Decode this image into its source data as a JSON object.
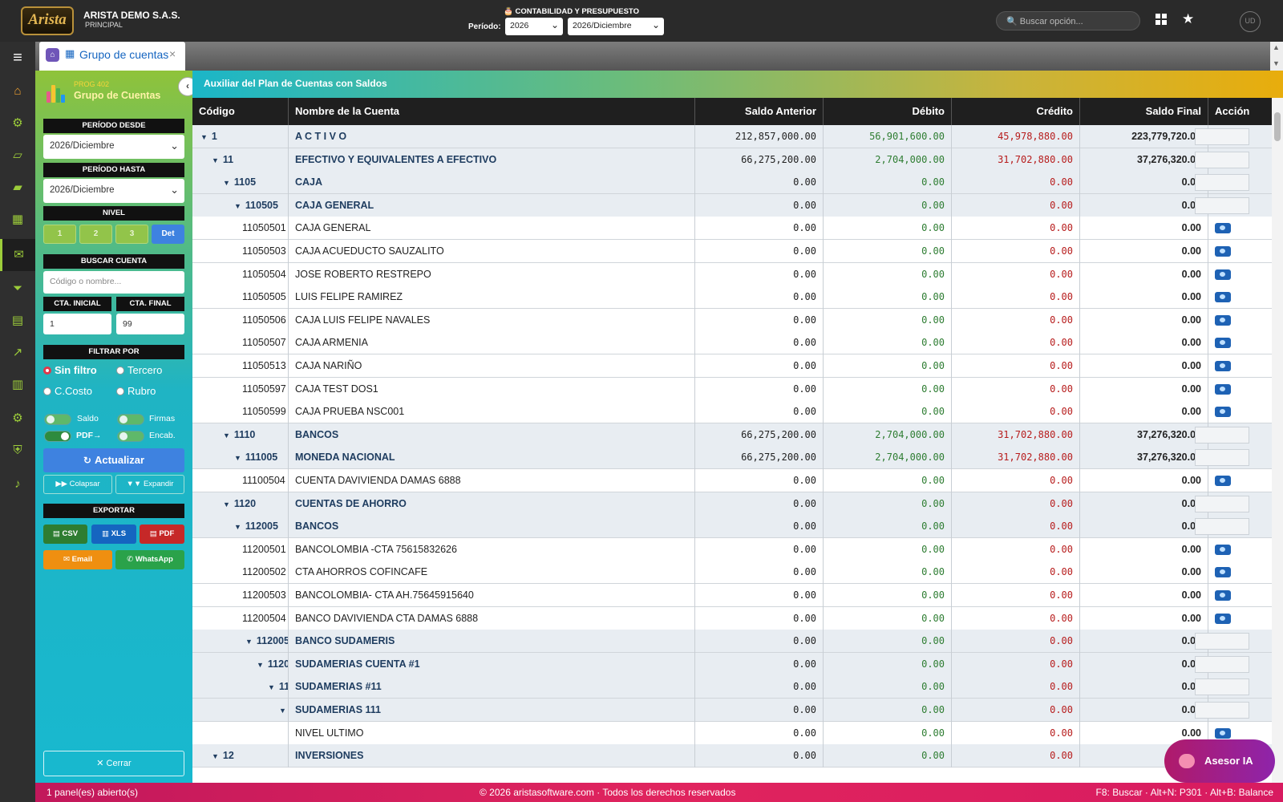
{
  "topbar": {
    "logo_text": "Arista",
    "company_name": "ARISTA DEMO S.A.S.",
    "company_sub": "PRINCIPAL",
    "module_title": "🎂 CONTABILIDAD Y PRESUPUESTO",
    "period_label": "Período:",
    "year_value": "2026",
    "month_value": "2026/Diciembre",
    "search_placeholder": "🔍 Buscar opción...",
    "avatar_initials": "UD"
  },
  "tab": {
    "label": "Grupo de cuentas"
  },
  "panel": {
    "prog_code": "PROG 402",
    "prog_name": "Grupo de Cuentas",
    "periodo_desde_label": "PERÍODO DESDE",
    "periodo_desde_value": "2026/Diciembre",
    "periodo_hasta_label": "PERÍODO HASTA",
    "periodo_hasta_value": "2026/Diciembre",
    "nivel_label": "NIVEL",
    "nivel_options": [
      "1",
      "2",
      "3",
      "Det"
    ],
    "buscar_label": "BUSCAR CUENTA",
    "buscar_placeholder": "Código o nombre...",
    "cta_inicial_label": "CTA. INICIAL",
    "cta_inicial_value": "1",
    "cta_final_label": "CTA. FINAL",
    "cta_final_value": "99",
    "filtrar_label": "FILTRAR POR",
    "filter_sin": "Sin filtro",
    "filter_tercero": "Tercero",
    "filter_ccosto": "C.Costo",
    "filter_rubro": "Rubro",
    "toggle_saldo": "Saldo",
    "toggle_firmas": "Firmas",
    "toggle_pdf": "PDF→",
    "toggle_encab": "Encab.",
    "actualizar": "Actualizar",
    "colapsar": "▶▶ Colapsar",
    "expandir": "▼▼ Expandir",
    "exportar_label": "EXPORTAR",
    "csv": "CSV",
    "xls": "XLS",
    "pdf": "PDF",
    "email": "Email",
    "whatsapp": "WhatsApp",
    "cerrar": "✕ Cerrar"
  },
  "report": {
    "title": "Auxiliar del Plan de Cuentas con Saldos",
    "columns": [
      "Código",
      "Nombre de la Cuenta",
      "Saldo Anterior",
      "Débito",
      "Crédito",
      "Saldo Final",
      "Acción"
    ],
    "rows": [
      {
        "lvl": 0,
        "type": "g",
        "code": "1",
        "name": "A C T I V O",
        "prev": "212,857,000.00",
        "deb": "56,901,600.00",
        "cre": "45,978,880.00",
        "fin": "223,779,720.00"
      },
      {
        "lvl": 1,
        "type": "g",
        "code": "11",
        "name": "EFECTIVO Y EQUIVALENTES A EFECTIVO",
        "prev": "66,275,200.00",
        "deb": "2,704,000.00",
        "cre": "31,702,880.00",
        "fin": "37,276,320.00"
      },
      {
        "lvl": 2,
        "type": "g",
        "code": "1105",
        "name": "CAJA",
        "prev": "0.00",
        "deb": "0.00",
        "cre": "0.00",
        "fin": "0.00"
      },
      {
        "lvl": 3,
        "type": "g",
        "code": "110505",
        "name": "CAJA GENERAL",
        "prev": "0.00",
        "deb": "0.00",
        "cre": "0.00",
        "fin": "0.00"
      },
      {
        "lvl": 4,
        "type": "l",
        "code": "11050501",
        "name": "CAJA GENERAL",
        "prev": "0.00",
        "deb": "0.00",
        "cre": "0.00",
        "fin": "0.00"
      },
      {
        "lvl": 4,
        "type": "l",
        "code": "11050503",
        "name": "CAJA ACUEDUCTO SAUZALITO",
        "prev": "0.00",
        "deb": "0.00",
        "cre": "0.00",
        "fin": "0.00"
      },
      {
        "lvl": 4,
        "type": "l",
        "code": "11050504",
        "name": "JOSE ROBERTO RESTREPO",
        "prev": "0.00",
        "deb": "0.00",
        "cre": "0.00",
        "fin": "0.00"
      },
      {
        "lvl": 4,
        "type": "l",
        "code": "11050505",
        "name": "LUIS FELIPE RAMIREZ",
        "prev": "0.00",
        "deb": "0.00",
        "cre": "0.00",
        "fin": "0.00"
      },
      {
        "lvl": 4,
        "type": "l",
        "code": "11050506",
        "name": "CAJA LUIS FELIPE NAVALES",
        "prev": "0.00",
        "deb": "0.00",
        "cre": "0.00",
        "fin": "0.00"
      },
      {
        "lvl": 4,
        "type": "l",
        "code": "11050507",
        "name": "CAJA ARMENIA",
        "prev": "0.00",
        "deb": "0.00",
        "cre": "0.00",
        "fin": "0.00"
      },
      {
        "lvl": 4,
        "type": "l",
        "code": "11050513",
        "name": "CAJA NARIÑO",
        "prev": "0.00",
        "deb": "0.00",
        "cre": "0.00",
        "fin": "0.00"
      },
      {
        "lvl": 4,
        "type": "l",
        "code": "11050597",
        "name": "CAJA TEST DOS1",
        "prev": "0.00",
        "deb": "0.00",
        "cre": "0.00",
        "fin": "0.00"
      },
      {
        "lvl": 4,
        "type": "l",
        "code": "11050599",
        "name": "CAJA PRUEBA NSC001",
        "prev": "0.00",
        "deb": "0.00",
        "cre": "0.00",
        "fin": "0.00"
      },
      {
        "lvl": 2,
        "type": "g",
        "code": "1110",
        "name": "BANCOS",
        "prev": "66,275,200.00",
        "deb": "2,704,000.00",
        "cre": "31,702,880.00",
        "fin": "37,276,320.00"
      },
      {
        "lvl": 3,
        "type": "g",
        "code": "111005",
        "name": "MONEDA NACIONAL",
        "prev": "66,275,200.00",
        "deb": "2,704,000.00",
        "cre": "31,702,880.00",
        "fin": "37,276,320.00"
      },
      {
        "lvl": 4,
        "type": "l",
        "code": "11100504",
        "name": "CUENTA DAVIVIENDA DAMAS 6888",
        "prev": "0.00",
        "deb": "0.00",
        "cre": "0.00",
        "fin": "0.00"
      },
      {
        "lvl": 2,
        "type": "g",
        "code": "1120",
        "name": "CUENTAS DE AHORRO",
        "prev": "0.00",
        "deb": "0.00",
        "cre": "0.00",
        "fin": "0.00"
      },
      {
        "lvl": 3,
        "type": "g",
        "code": "112005",
        "name": "BANCOS",
        "prev": "0.00",
        "deb": "0.00",
        "cre": "0.00",
        "fin": "0.00"
      },
      {
        "lvl": 4,
        "type": "l",
        "code": "11200501",
        "name": "BANCOLOMBIA -CTA 75615832626",
        "prev": "0.00",
        "deb": "0.00",
        "cre": "0.00",
        "fin": "0.00"
      },
      {
        "lvl": 4,
        "type": "l",
        "code": "11200502",
        "name": "CTA AHORROS COFINCAFE",
        "prev": "0.00",
        "deb": "0.00",
        "cre": "0.00",
        "fin": "0.00"
      },
      {
        "lvl": 4,
        "type": "l",
        "code": "11200503",
        "name": "BANCOLOMBIA- CTA AH.75645915640",
        "prev": "0.00",
        "deb": "0.00",
        "cre": "0.00",
        "fin": "0.00"
      },
      {
        "lvl": 4,
        "type": "l",
        "code": "11200504",
        "name": "BANCO DAVIVIENDA CTA DAMAS 6888",
        "prev": "0.00",
        "deb": "0.00",
        "cre": "0.00",
        "fin": "0.00"
      },
      {
        "lvl": 4,
        "type": "g",
        "code": "112005",
        "name": "BANCO SUDAMERIS",
        "prev": "0.00",
        "deb": "0.00",
        "cre": "0.00",
        "fin": "0.00"
      },
      {
        "lvl": 5,
        "type": "g",
        "code": "1120",
        "name": "SUDAMERIAS CUENTA #1",
        "prev": "0.00",
        "deb": "0.00",
        "cre": "0.00",
        "fin": "0.00"
      },
      {
        "lvl": 6,
        "type": "g",
        "code": "11",
        "name": "SUDAMERIAS #11",
        "prev": "0.00",
        "deb": "0.00",
        "cre": "0.00",
        "fin": "0.00"
      },
      {
        "lvl": 7,
        "type": "g",
        "code": "",
        "name": "SUDAMERIAS 111",
        "prev": "0.00",
        "deb": "0.00",
        "cre": "0.00",
        "fin": "0.00"
      },
      {
        "lvl": 8,
        "type": "l",
        "code": "",
        "name": "NIVEL ULTIMO",
        "prev": "0.00",
        "deb": "0.00",
        "cre": "0.00",
        "fin": "0.00"
      },
      {
        "lvl": 1,
        "type": "g",
        "code": "12",
        "name": "INVERSIONES",
        "prev": "0.00",
        "deb": "0.00",
        "cre": "0.00",
        "fin": "0.00"
      }
    ]
  },
  "footer": {
    "left": "1 panel(es) abierto(s)",
    "center": "© 2026 aristasoftware.com · Todos los derechos reservados",
    "right": "F8: Buscar · Alt+N: P301 · Alt+B: Balance"
  },
  "asesor": {
    "label": "Asesor IA"
  }
}
